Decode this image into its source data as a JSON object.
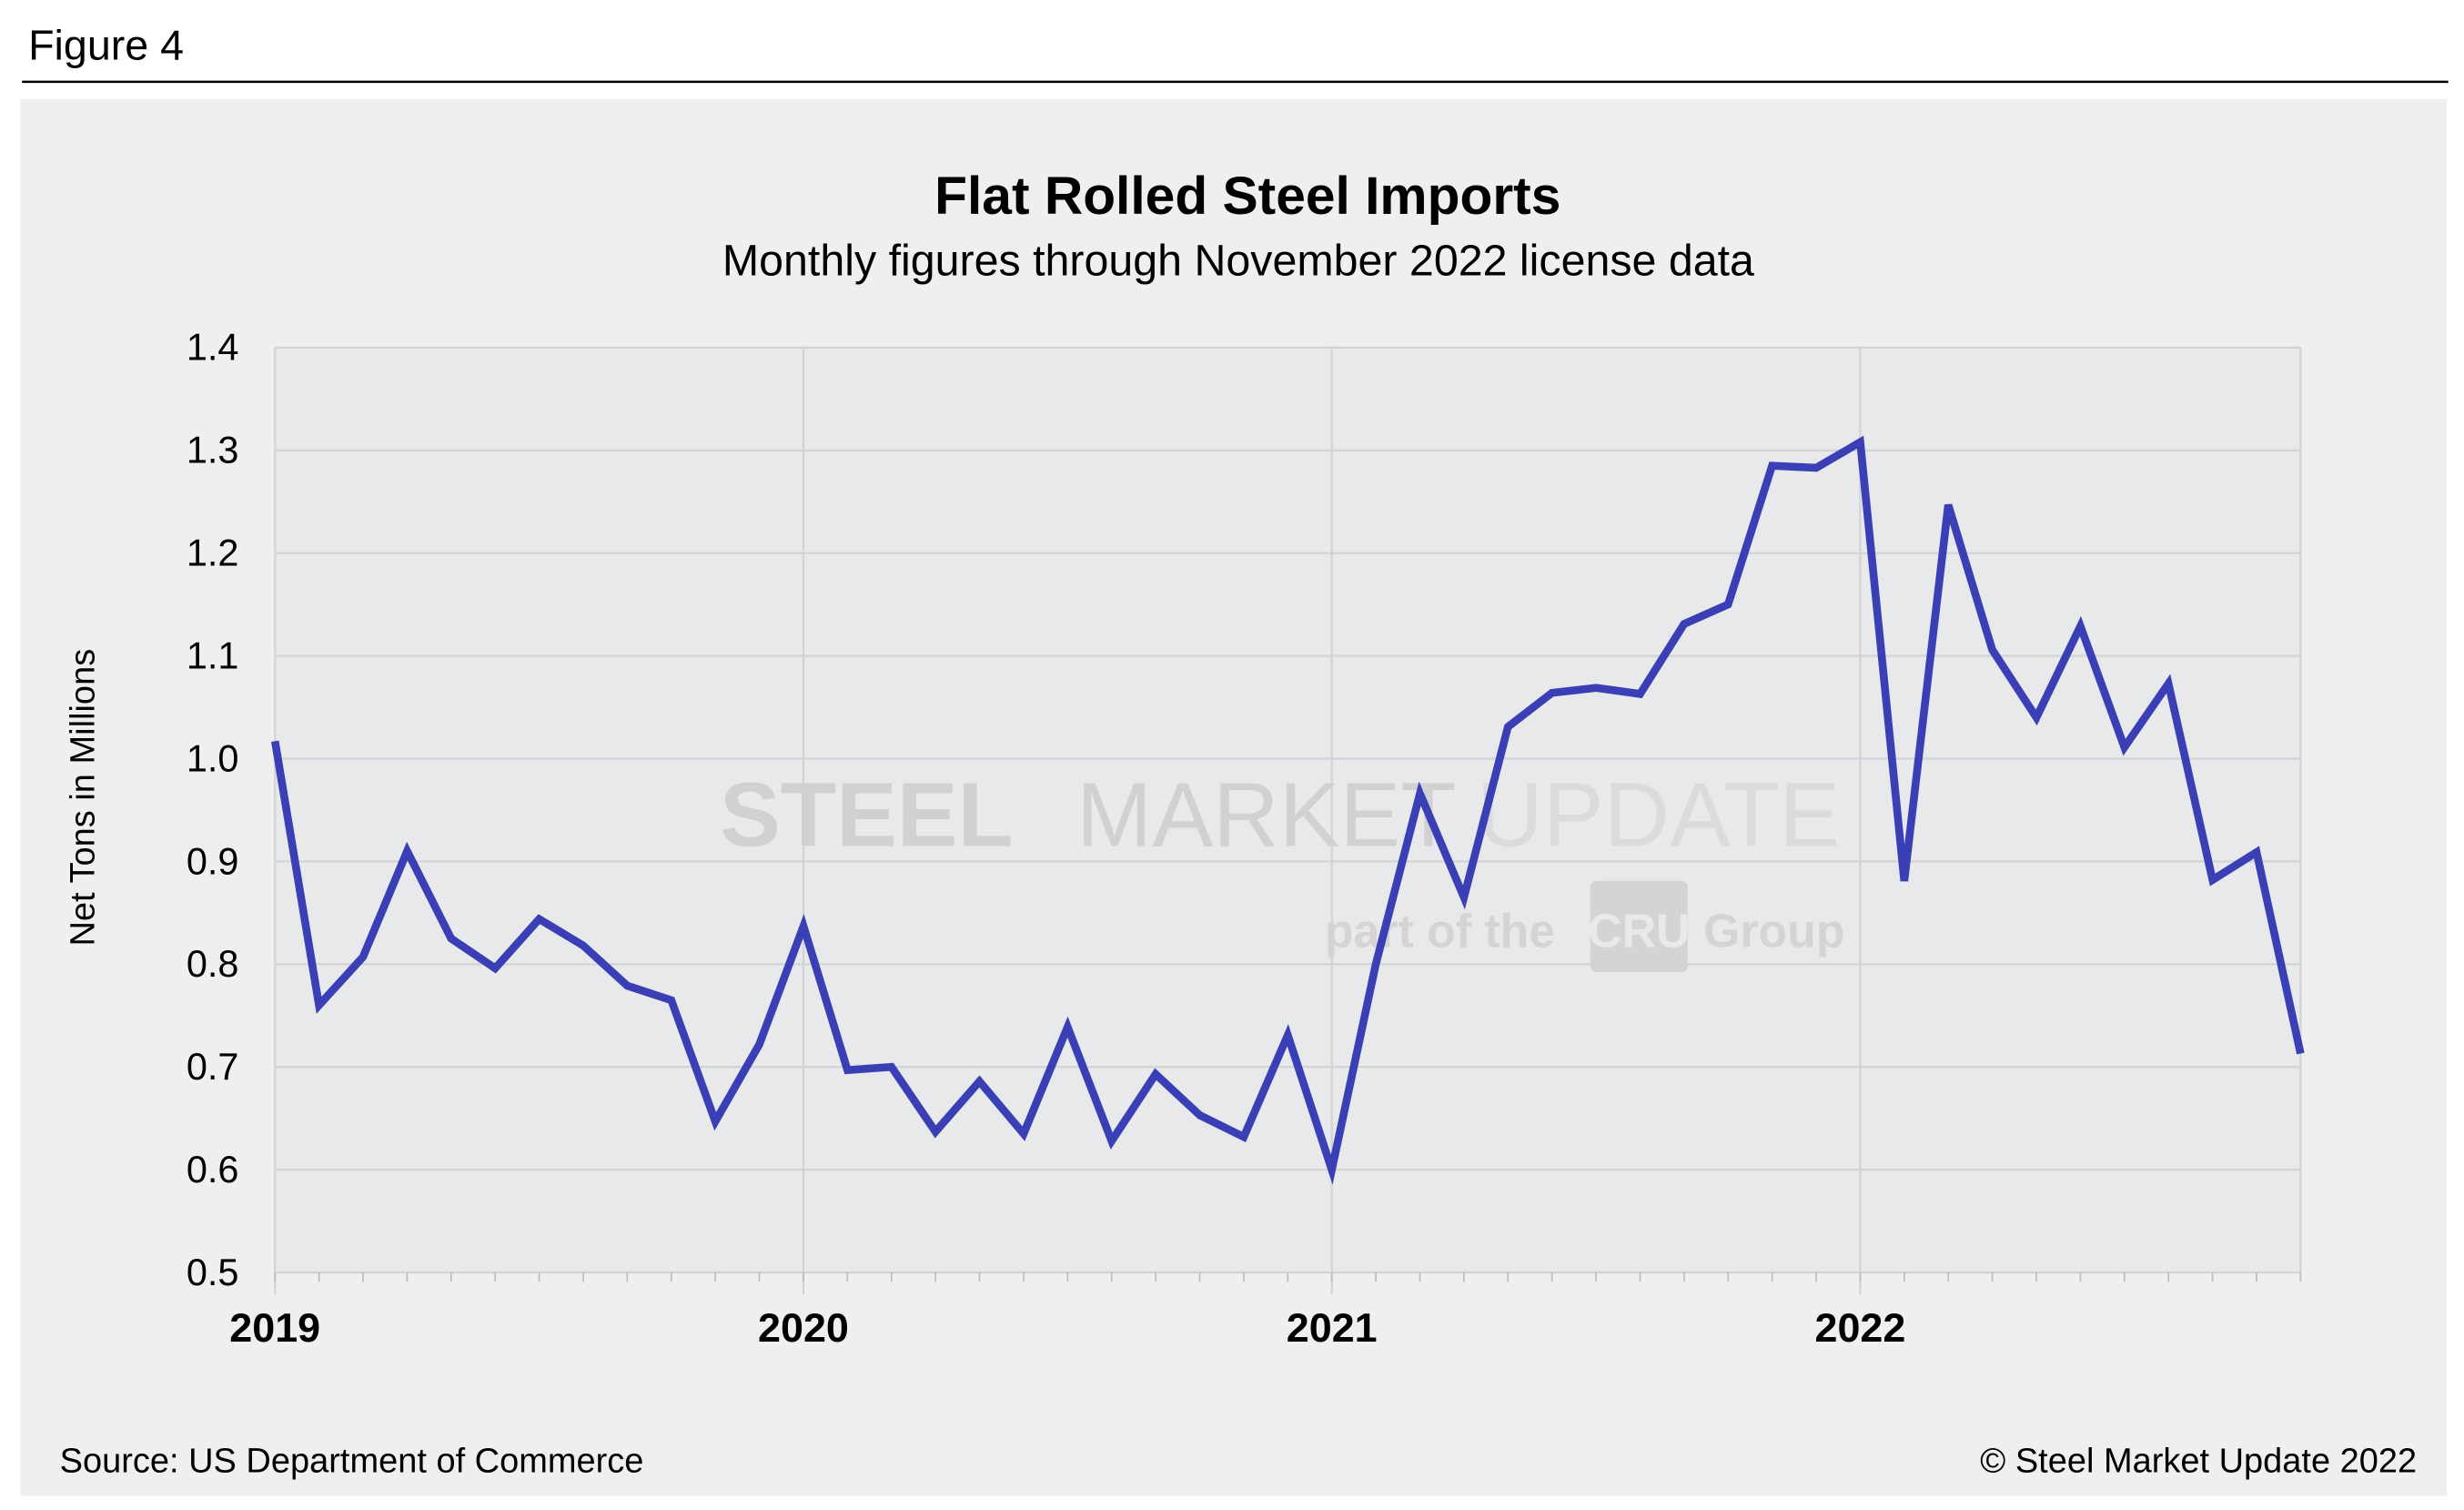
{
  "figure_label": "Figure 4",
  "source": "Source: US Department of Commerce",
  "copyright": "© Steel Market Update 2022",
  "watermark": {
    "line1_bold": "STEEL",
    "line1_mid": "MARKET",
    "line1_light": "UPDATE",
    "line2_pre": "part of the",
    "line2_logo": "CRU",
    "line2_post": "Group"
  },
  "colors": {
    "line": "#3b3fb6",
    "plot_bg": "#e8e9eb",
    "panel_bg": "#efefef",
    "grid": "#d2d3d5"
  },
  "chart_data": {
    "type": "line",
    "title": "Flat Rolled Steel Imports",
    "subtitle": "Monthly figures through November 2022 license data",
    "xlabel": "",
    "ylabel": "Net Tons in Millions",
    "ylim": [
      0.5,
      1.4
    ],
    "yticks": [
      "0.5",
      "0.6",
      "0.7",
      "0.8",
      "0.9",
      "1.0",
      "1.1",
      "1.2",
      "1.3",
      "1.4"
    ],
    "xticks": [
      "2019",
      "2020",
      "2021",
      "2022"
    ],
    "grid": true,
    "x": [
      "2019-01",
      "2019-02",
      "2019-03",
      "2019-04",
      "2019-05",
      "2019-06",
      "2019-07",
      "2019-08",
      "2019-09",
      "2019-10",
      "2019-11",
      "2019-12",
      "2020-01",
      "2020-02",
      "2020-03",
      "2020-04",
      "2020-05",
      "2020-06",
      "2020-07",
      "2020-08",
      "2020-09",
      "2020-10",
      "2020-11",
      "2020-12",
      "2021-01",
      "2021-02",
      "2021-03",
      "2021-04",
      "2021-05",
      "2021-06",
      "2021-07",
      "2021-08",
      "2021-09",
      "2021-10",
      "2021-11",
      "2021-12",
      "2022-01",
      "2022-02",
      "2022-03",
      "2022-04",
      "2022-05",
      "2022-06",
      "2022-07",
      "2022-08",
      "2022-09",
      "2022-10",
      "2022-11"
    ],
    "values": [
      1.017,
      0.76,
      0.807,
      0.91,
      0.825,
      0.796,
      0.844,
      0.818,
      0.779,
      0.765,
      0.647,
      0.722,
      0.837,
      0.697,
      0.7,
      0.637,
      0.686,
      0.635,
      0.739,
      0.628,
      0.693,
      0.653,
      0.632,
      0.731,
      0.6,
      0.8,
      0.966,
      0.865,
      1.031,
      1.064,
      1.069,
      1.063,
      1.131,
      1.15,
      1.285,
      1.283,
      1.308,
      0.881,
      1.247,
      1.106,
      1.04,
      1.129,
      1.011,
      1.073,
      0.882,
      0.909,
      0.713
    ]
  }
}
